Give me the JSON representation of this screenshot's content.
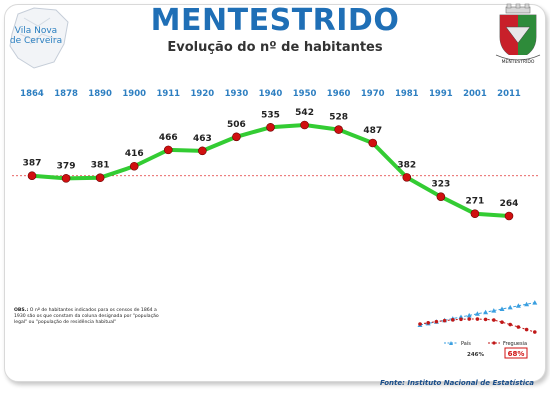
{
  "header": {
    "title": "MENTESTRIDO",
    "subtitle": "Evolução do nº de habitantes",
    "map_label_line1": "Vila Nova",
    "map_label_line2": "de Cerveira",
    "crest_label": "MENTESTRIDO"
  },
  "chart_data": {
    "type": "line",
    "x": [
      "1864",
      "1878",
      "1890",
      "1900",
      "1911",
      "1920",
      "1930",
      "1940",
      "1950",
      "1960",
      "1970",
      "1981",
      "1991",
      "2001",
      "2011"
    ],
    "series": [
      {
        "values": [
          387,
          379,
          381,
          416,
          466,
          463,
          506,
          535,
          542,
          528,
          487,
          382,
          323,
          271,
          264
        ]
      }
    ],
    "reference_line": 387,
    "colors": {
      "line": "#33cc33",
      "marker": "#d01010",
      "reference": "#e03030",
      "year_labels": "#2e7fc1"
    },
    "inset": {
      "type": "line",
      "legend": [
        "País",
        "Freguesia"
      ],
      "labels": [
        "246%",
        "68%"
      ],
      "colors": {
        "pais": "#3a9fe0",
        "freguesia": "#c01818"
      }
    }
  },
  "footer": {
    "note_bold": "OBS.:",
    "note_text": "O nº de habitantes indicados para os censos de 1864 a 1930 são os que constam da coluna designada por \"população legal\" ou \"população de residência habitual\"",
    "source": "Fonte: Instituto Nacional de Estatística"
  }
}
